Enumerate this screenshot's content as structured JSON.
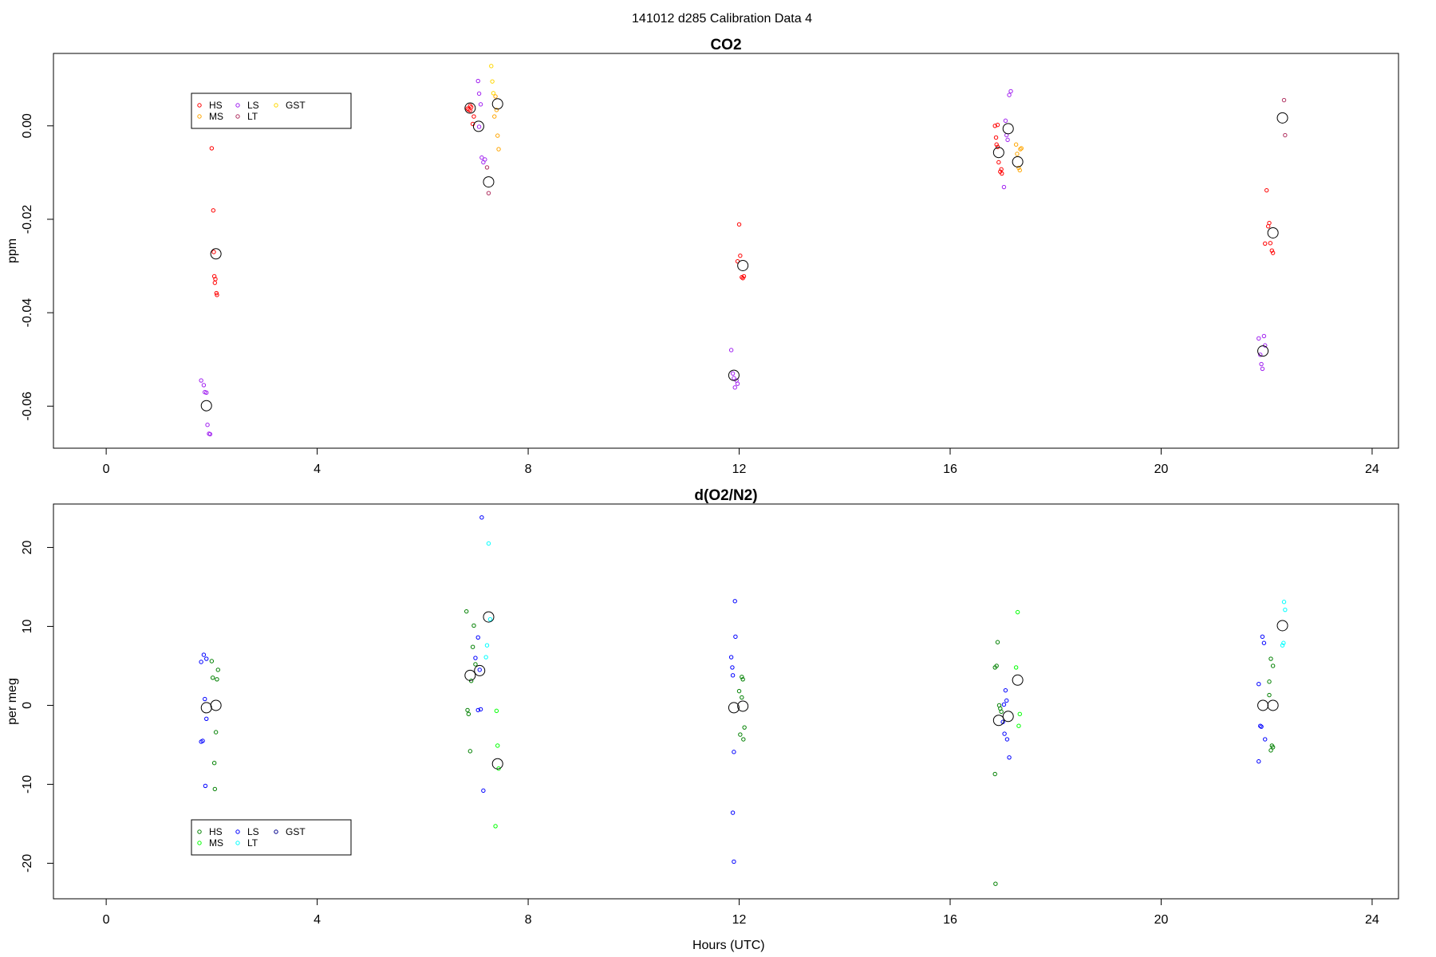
{
  "figure_title": "141012   d285   Calibration Data 4",
  "chart_data": [
    {
      "type": "scatter",
      "title": "CO2",
      "xlabel": "",
      "ylabel": "ppm",
      "xlim": [
        -1,
        24.5
      ],
      "ylim": [
        -0.069,
        0.0155
      ],
      "xticks": [
        0,
        4,
        8,
        12,
        16,
        20,
        24
      ],
      "yticks": [
        -0.06,
        -0.04,
        -0.02,
        0.0
      ],
      "ytick_labels": [
        "-0.06",
        "-0.04",
        "-0.02",
        "0.00"
      ],
      "legend": {
        "placement": "top-left",
        "entries": [
          {
            "name": "HS",
            "color": "#ff0000"
          },
          {
            "name": "MS",
            "color": "#ffa500"
          },
          {
            "name": "LS",
            "color": "#a020f0"
          },
          {
            "name": "LT",
            "color": "#b03060"
          },
          {
            "name": "GST",
            "color": "#ffd700"
          }
        ]
      },
      "series": [
        {
          "name": "HS",
          "color": "#ff0000",
          "points": [
            [
              2.0,
              -0.0048
            ],
            [
              2.03,
              -0.0181
            ],
            [
              2.04,
              -0.027
            ],
            [
              2.05,
              -0.0322
            ],
            [
              2.07,
              -0.0328
            ],
            [
              2.09,
              -0.0358
            ],
            [
              2.1,
              -0.0362
            ],
            [
              2.06,
              -0.0336
            ],
            [
              6.85,
              0.0037
            ],
            [
              6.87,
              0.0035
            ],
            [
              6.9,
              0.0043
            ],
            [
              6.92,
              0.004
            ],
            [
              6.95,
              0.0004
            ],
            [
              6.97,
              0.002
            ],
            [
              6.9,
              0.0033
            ],
            [
              11.97,
              -0.029
            ],
            [
              12.0,
              -0.0211
            ],
            [
              12.02,
              -0.0278
            ],
            [
              12.05,
              -0.0324
            ],
            [
              12.07,
              -0.0326
            ],
            [
              12.09,
              -0.0322
            ],
            [
              16.85,
              0.0
            ],
            [
              16.87,
              -0.0025
            ],
            [
              16.88,
              -0.004
            ],
            [
              16.9,
              -0.0045
            ],
            [
              16.92,
              -0.0078
            ],
            [
              16.95,
              -0.0098
            ],
            [
              16.97,
              -0.0093
            ],
            [
              16.98,
              -0.0102
            ],
            [
              16.9,
              0.0002
            ],
            [
              21.97,
              -0.0252
            ],
            [
              22.0,
              -0.0138
            ],
            [
              22.03,
              -0.0215
            ],
            [
              22.05,
              -0.0208
            ],
            [
              22.07,
              -0.0251
            ],
            [
              22.1,
              -0.0267
            ],
            [
              22.12,
              -0.0272
            ]
          ]
        },
        {
          "name": "LS",
          "color": "#a020f0",
          "points": [
            [
              1.8,
              -0.0545
            ],
            [
              1.85,
              -0.0555
            ],
            [
              1.87,
              -0.057
            ],
            [
              1.9,
              -0.0571
            ],
            [
              1.92,
              -0.064
            ],
            [
              1.95,
              -0.0659
            ],
            [
              1.97,
              -0.066
            ],
            [
              7.05,
              0.0096
            ],
            [
              7.07,
              0.0069
            ],
            [
              7.1,
              0.0046
            ],
            [
              7.12,
              -0.0068
            ],
            [
              7.15,
              -0.0078
            ],
            [
              7.18,
              -0.0072
            ],
            [
              7.07,
              -0.0002
            ],
            [
              11.85,
              -0.048
            ],
            [
              11.88,
              -0.053
            ],
            [
              11.9,
              -0.054
            ],
            [
              11.92,
              -0.056
            ],
            [
              11.95,
              -0.0545
            ],
            [
              11.97,
              -0.0552
            ],
            [
              17.05,
              0.0011
            ],
            [
              17.07,
              -0.002
            ],
            [
              17.09,
              -0.003
            ],
            [
              17.12,
              0.0066
            ],
            [
              17.15,
              0.0074
            ],
            [
              17.02,
              -0.0131
            ],
            [
              21.85,
              -0.0455
            ],
            [
              21.88,
              -0.049
            ],
            [
              21.9,
              -0.051
            ],
            [
              21.92,
              -0.052
            ],
            [
              21.95,
              -0.045
            ],
            [
              21.97,
              -0.047
            ]
          ]
        },
        {
          "name": "LT",
          "color": "#b03060",
          "points": [
            [
              7.22,
              -0.0089
            ],
            [
              7.25,
              -0.0144
            ],
            [
              22.33,
              0.0055
            ],
            [
              22.35,
              -0.002
            ]
          ]
        },
        {
          "name": "MS",
          "color": "#ffa500",
          "points": [
            [
              7.38,
              0.0063
            ],
            [
              7.4,
              0.0034
            ],
            [
              7.42,
              -0.0021
            ],
            [
              7.44,
              -0.005
            ],
            [
              7.36,
              0.002
            ],
            [
              17.25,
              -0.004
            ],
            [
              17.27,
              -0.006
            ],
            [
              17.3,
              -0.009
            ],
            [
              17.32,
              -0.0095
            ],
            [
              17.33,
              -0.005
            ],
            [
              17.35,
              -0.0048
            ]
          ]
        },
        {
          "name": "GST",
          "color": "#ffd700",
          "points": [
            [
              7.3,
              0.0128
            ],
            [
              7.32,
              0.0095
            ],
            [
              7.34,
              0.007
            ]
          ]
        },
        {
          "name": "",
          "color": "#000000",
          "role": "mean",
          "points": [
            [
              1.9,
              -0.0599
            ],
            [
              2.08,
              -0.0274
            ],
            [
              6.9,
              0.0038
            ],
            [
              7.06,
              -0.0001
            ],
            [
              7.25,
              -0.012
            ],
            [
              7.42,
              0.0047
            ],
            [
              11.9,
              -0.0534
            ],
            [
              12.07,
              -0.0299
            ],
            [
              16.92,
              -0.0057
            ],
            [
              17.1,
              -0.0006
            ],
            [
              17.28,
              -0.0077
            ],
            [
              21.93,
              -0.0482
            ],
            [
              22.12,
              -0.0229
            ],
            [
              22.3,
              0.0017
            ]
          ]
        }
      ]
    },
    {
      "type": "scatter",
      "title": "d(O2/N2)",
      "xlabel": "Hours (UTC)",
      "ylabel": "per meg",
      "xlim": [
        -1,
        24.5
      ],
      "ylim": [
        -24.5,
        25.5
      ],
      "xticks": [
        0,
        4,
        8,
        12,
        16,
        20,
        24
      ],
      "yticks": [
        -20,
        -10,
        0,
        10,
        20
      ],
      "ytick_labels": [
        "-20",
        "-10",
        "0",
        "10",
        "20"
      ],
      "legend": {
        "placement": "bottom-left",
        "entries": [
          {
            "name": "HS",
            "color": "#008000"
          },
          {
            "name": "MS",
            "color": "#00ff00"
          },
          {
            "name": "LS",
            "color": "#0000ff"
          },
          {
            "name": "LT",
            "color": "#00ffff"
          },
          {
            "name": "GST",
            "color": "#00008b"
          }
        ]
      },
      "series": [
        {
          "name": "HS",
          "color": "#008000",
          "points": [
            [
              2.0,
              5.6
            ],
            [
              2.02,
              3.5
            ],
            [
              2.05,
              -7.3
            ],
            [
              2.06,
              -10.6
            ],
            [
              2.08,
              -3.4
            ],
            [
              2.1,
              3.3
            ],
            [
              2.12,
              4.5
            ],
            [
              6.83,
              11.9
            ],
            [
              6.85,
              -0.6
            ],
            [
              6.87,
              -1.1
            ],
            [
              6.9,
              -5.8
            ],
            [
              6.92,
              3.1
            ],
            [
              6.95,
              7.4
            ],
            [
              6.97,
              10.1
            ],
            [
              7.0,
              5.2
            ],
            [
              12.05,
              3.6
            ],
            [
              12.07,
              3.3
            ],
            [
              12.0,
              1.8
            ],
            [
              12.02,
              -3.7
            ],
            [
              12.08,
              -4.3
            ],
            [
              12.1,
              -2.8
            ],
            [
              12.05,
              1.0
            ],
            [
              16.85,
              4.8
            ],
            [
              16.88,
              5.0
            ],
            [
              16.9,
              8.0
            ],
            [
              16.93,
              0.0
            ],
            [
              16.95,
              -0.4
            ],
            [
              16.97,
              -0.8
            ],
            [
              16.85,
              -8.7
            ],
            [
              16.86,
              -22.6
            ],
            [
              22.05,
              3.0
            ],
            [
              22.08,
              5.9
            ],
            [
              22.12,
              5.0
            ],
            [
              22.1,
              -5.1
            ],
            [
              22.08,
              -5.7
            ],
            [
              22.12,
              -5.3
            ],
            [
              22.05,
              1.3
            ]
          ]
        },
        {
          "name": "LS",
          "color": "#0000ff",
          "points": [
            [
              1.8,
              5.5
            ],
            [
              1.85,
              6.4
            ],
            [
              1.9,
              5.9
            ],
            [
              1.87,
              0.8
            ],
            [
              1.9,
              -1.7
            ],
            [
              1.8,
              -4.6
            ],
            [
              1.83,
              -4.5
            ],
            [
              1.88,
              -10.2
            ],
            [
              7.0,
              6.0
            ],
            [
              7.05,
              8.6
            ],
            [
              7.08,
              4.5
            ],
            [
              7.12,
              23.8
            ],
            [
              7.1,
              -0.5
            ],
            [
              7.05,
              -0.6
            ],
            [
              7.15,
              -10.8
            ],
            [
              11.85,
              6.1
            ],
            [
              11.87,
              4.8
            ],
            [
              11.88,
              3.8
            ],
            [
              11.92,
              13.2
            ],
            [
              11.93,
              8.7
            ],
            [
              11.9,
              -5.9
            ],
            [
              11.88,
              -13.6
            ],
            [
              11.9,
              -19.8
            ],
            [
              17.05,
              1.9
            ],
            [
              17.07,
              0.6
            ],
            [
              17.02,
              0.1
            ],
            [
              17.0,
              -2.1
            ],
            [
              17.03,
              -3.6
            ],
            [
              17.08,
              -4.3
            ],
            [
              17.12,
              -6.6
            ],
            [
              21.85,
              2.7
            ],
            [
              21.88,
              -2.6
            ],
            [
              21.9,
              -2.7
            ],
            [
              21.92,
              8.7
            ],
            [
              21.95,
              7.9
            ],
            [
              21.97,
              -4.3
            ],
            [
              21.85,
              -7.1
            ]
          ]
        },
        {
          "name": "MS",
          "color": "#00ff00",
          "points": [
            [
              7.4,
              -0.7
            ],
            [
              7.42,
              -5.1
            ],
            [
              7.44,
              -8.0
            ],
            [
              7.38,
              -15.3
            ],
            [
              17.25,
              4.8
            ],
            [
              17.28,
              11.8
            ],
            [
              17.3,
              -2.6
            ],
            [
              17.32,
              -1.1
            ]
          ]
        },
        {
          "name": "LT",
          "color": "#00ffff",
          "points": [
            [
              7.2,
              6.1
            ],
            [
              7.22,
              7.6
            ],
            [
              7.25,
              20.5
            ],
            [
              7.28,
              10.9
            ],
            [
              22.3,
              7.6
            ],
            [
              22.32,
              7.9
            ],
            [
              22.35,
              12.1
            ],
            [
              22.33,
              13.1
            ]
          ]
        },
        {
          "name": "",
          "color": "#000000",
          "role": "mean",
          "points": [
            [
              1.9,
              -0.3
            ],
            [
              2.08,
              0.0
            ],
            [
              6.9,
              3.8
            ],
            [
              7.08,
              4.4
            ],
            [
              7.25,
              11.2
            ],
            [
              7.42,
              -7.4
            ],
            [
              11.9,
              -0.3
            ],
            [
              12.07,
              -0.1
            ],
            [
              16.92,
              -1.9
            ],
            [
              17.1,
              -1.4
            ],
            [
              17.28,
              3.2
            ],
            [
              21.93,
              0.0
            ],
            [
              22.12,
              0.0
            ],
            [
              22.3,
              10.1
            ]
          ]
        }
      ]
    }
  ]
}
